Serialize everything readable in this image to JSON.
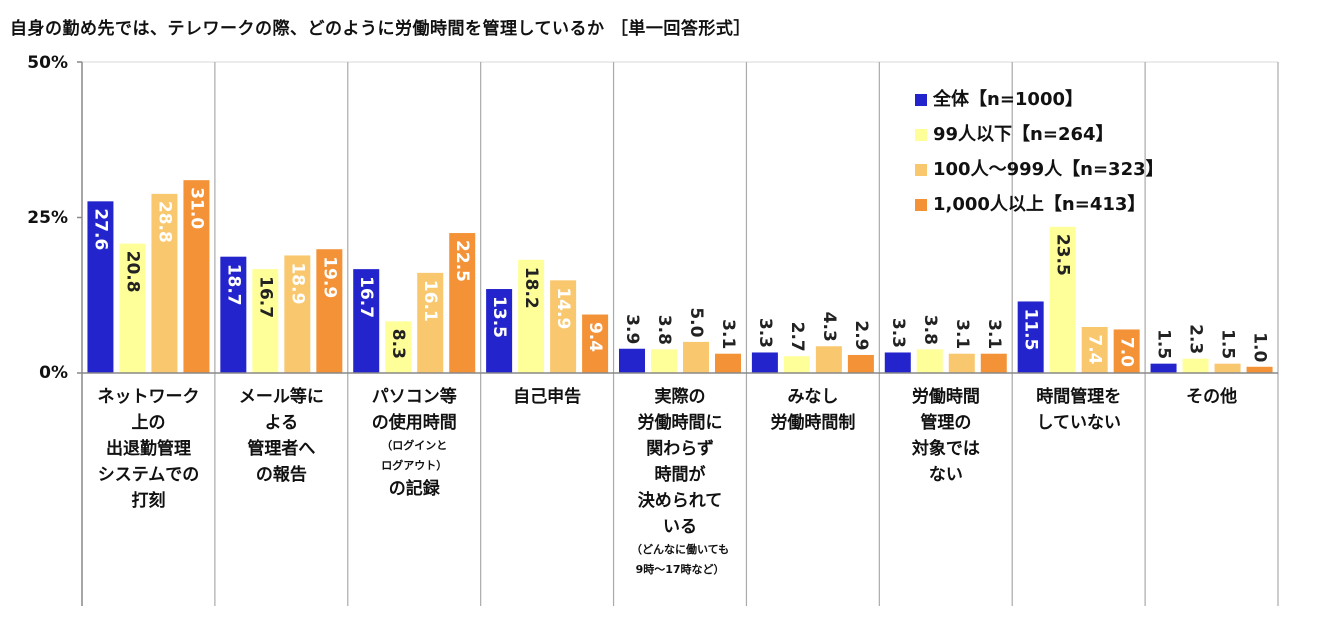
{
  "title": "自身の勤め先では、テレワークの際、どのように労働時間を管理しているか ［単一回答形式］",
  "chart_data": {
    "type": "bar",
    "title": "自身の勤め先では、テレワークの際、どのように労働時間を管理しているか ［単一回答形式］",
    "ylim": [
      0,
      50
    ],
    "yticks": [
      "0%",
      "25%",
      "50%"
    ],
    "ytick_values": [
      0,
      25,
      50
    ],
    "grid": false,
    "legend_position": "top-right",
    "categories": [
      {
        "name": "ネットワーク上の出退勤管理システムでの打刻",
        "lines": [
          {
            "t": "ネットワーク"
          },
          {
            "t": "上の"
          },
          {
            "t": "出退勤管理"
          },
          {
            "t": "システムでの"
          },
          {
            "t": "打刻"
          }
        ]
      },
      {
        "name": "メール等による管理者への報告",
        "lines": [
          {
            "t": "メール等に"
          },
          {
            "t": "よる"
          },
          {
            "t": "管理者へ"
          },
          {
            "t": "の報告"
          }
        ]
      },
      {
        "name": "パソコン等の使用時間（ログインとログアウト）の記録",
        "lines": [
          {
            "t": "パソコン等"
          },
          {
            "t": "の使用時間"
          },
          {
            "t": "（ログインと",
            "small": true
          },
          {
            "t": "ログアウト）",
            "small": true
          },
          {
            "t": "の記録"
          }
        ]
      },
      {
        "name": "自己申告",
        "lines": [
          {
            "t": "自己申告"
          }
        ]
      },
      {
        "name": "実際の労働時間に関わらず時間が決められている（どんなに働いても9時～17時など）",
        "lines": [
          {
            "t": "実際の"
          },
          {
            "t": "労働時間に"
          },
          {
            "t": "関わらず"
          },
          {
            "t": "時間が"
          },
          {
            "t": "決められて"
          },
          {
            "t": "いる"
          },
          {
            "t": "（どんなに働いても",
            "small": true
          },
          {
            "t": "9時～17時など）",
            "small": true
          }
        ]
      },
      {
        "name": "みなし労働時間制",
        "lines": [
          {
            "t": "みなし"
          },
          {
            "t": "労働時間制"
          }
        ]
      },
      {
        "name": "労働時間管理の対象ではない",
        "lines": [
          {
            "t": "労働時間"
          },
          {
            "t": "管理の"
          },
          {
            "t": "対象では"
          },
          {
            "t": "ない"
          }
        ]
      },
      {
        "name": "時間管理をしていない",
        "lines": [
          {
            "t": "時間管理を"
          },
          {
            "t": "していない"
          }
        ]
      },
      {
        "name": "その他",
        "lines": [
          {
            "t": "その他"
          }
        ]
      }
    ],
    "series": [
      {
        "name": "全体【n=1000】",
        "color": "#2424cc",
        "label_color": "#ffffff",
        "values": [
          27.6,
          18.7,
          16.7,
          13.5,
          3.9,
          3.3,
          3.3,
          11.5,
          1.5
        ]
      },
      {
        "name": "99人以下【n=264】",
        "color": "#ffff99",
        "label_color": "#222222",
        "values": [
          20.8,
          16.7,
          8.3,
          18.2,
          3.8,
          2.7,
          3.8,
          23.5,
          2.3
        ]
      },
      {
        "name": "100人～999人【n=323】",
        "color": "#f9c86e",
        "label_color": "#ffffff",
        "values": [
          28.8,
          18.9,
          16.1,
          14.9,
          5.0,
          4.3,
          3.1,
          7.4,
          1.5
        ]
      },
      {
        "name": "1,000人以上【n=413】",
        "color": "#f39237",
        "label_color": "#ffffff",
        "values": [
          31.0,
          19.9,
          22.5,
          9.4,
          3.1,
          2.9,
          3.1,
          7.0,
          1.0
        ]
      }
    ]
  }
}
